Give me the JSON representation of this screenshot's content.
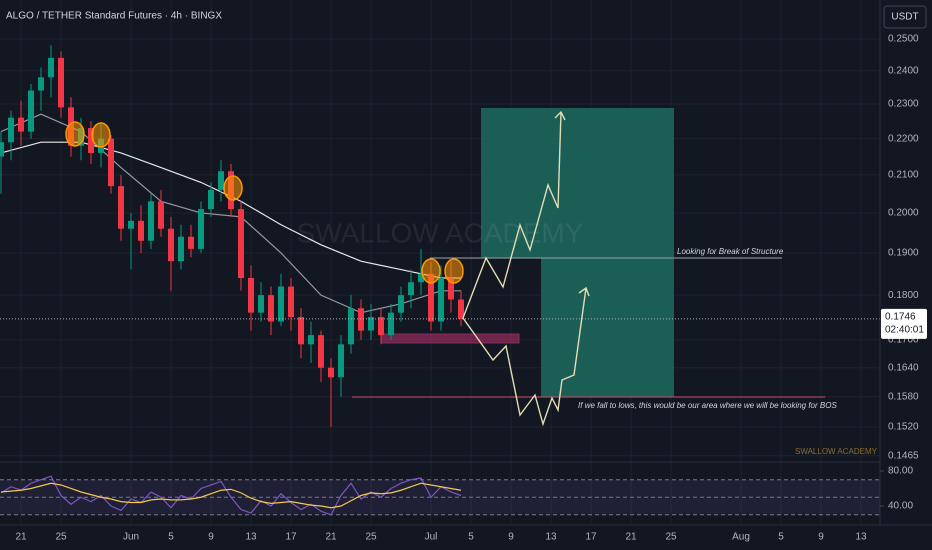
{
  "title": "ALGO / TETHER Standard Futures · 4h · BINGX",
  "currency": "USDT",
  "annotations": {
    "bos_top": "Looking for Break of Structure",
    "bos_bottom": "If we fall to lows, this would be our area where we will be looking for BOS",
    "watermark": "SWALLOW ACADEMY",
    "signature": "SWALLOW ACADEMY"
  },
  "chart_data": [
    {
      "type": "candlestick",
      "log_scale": true,
      "up_color": "#089981",
      "down_color": "#f23645",
      "x": [
        -2,
        -1,
        0,
        1,
        2,
        3,
        4,
        5,
        6,
        7,
        8,
        9,
        10,
        11,
        12,
        13,
        14,
        15,
        16,
        17,
        18,
        19,
        20,
        21,
        22,
        23,
        24,
        25,
        26,
        27,
        28,
        29,
        30,
        31,
        32,
        33,
        34,
        35,
        36,
        37,
        38,
        39,
        40,
        41,
        42,
        43,
        44
      ],
      "open": [
        0.215,
        0.219,
        0.226,
        0.222,
        0.234,
        0.238,
        0.244,
        0.229,
        0.218,
        0.223,
        0.216,
        0.22,
        0.207,
        0.196,
        0.198,
        0.193,
        0.203,
        0.196,
        0.188,
        0.194,
        0.191,
        0.201,
        0.206,
        0.211,
        0.201,
        0.184,
        0.176,
        0.18,
        0.174,
        0.182,
        0.175,
        0.169,
        0.171,
        0.164,
        0.162,
        0.169,
        0.177,
        0.172,
        0.175,
        0.171,
        0.176,
        0.18,
        0.183,
        0.185,
        0.174,
        0.184,
        0.179
      ],
      "high": [
        0.222,
        0.228,
        0.231,
        0.236,
        0.241,
        0.248,
        0.246,
        0.232,
        0.226,
        0.225,
        0.224,
        0.221,
        0.21,
        0.2,
        0.202,
        0.205,
        0.206,
        0.199,
        0.197,
        0.197,
        0.203,
        0.208,
        0.214,
        0.213,
        0.203,
        0.187,
        0.183,
        0.182,
        0.185,
        0.184,
        0.177,
        0.174,
        0.172,
        0.166,
        0.171,
        0.18,
        0.179,
        0.178,
        0.177,
        0.178,
        0.182,
        0.186,
        0.191,
        0.188,
        0.187,
        0.188,
        0.181
      ],
      "low": [
        0.205,
        0.214,
        0.218,
        0.22,
        0.228,
        0.232,
        0.226,
        0.215,
        0.214,
        0.213,
        0.212,
        0.205,
        0.193,
        0.186,
        0.19,
        0.191,
        0.194,
        0.181,
        0.186,
        0.189,
        0.19,
        0.199,
        0.203,
        0.199,
        0.181,
        0.172,
        0.174,
        0.171,
        0.173,
        0.172,
        0.166,
        0.165,
        0.161,
        0.152,
        0.158,
        0.167,
        0.17,
        0.17,
        0.169,
        0.17,
        0.174,
        0.177,
        0.18,
        0.172,
        0.172,
        0.176,
        0.173
      ],
      "close": [
        0.219,
        0.226,
        0.222,
        0.234,
        0.238,
        0.244,
        0.229,
        0.218,
        0.223,
        0.216,
        0.22,
        0.207,
        0.196,
        0.198,
        0.193,
        0.203,
        0.196,
        0.188,
        0.194,
        0.191,
        0.201,
        0.206,
        0.211,
        0.201,
        0.184,
        0.176,
        0.18,
        0.174,
        0.182,
        0.175,
        0.169,
        0.171,
        0.164,
        0.162,
        0.169,
        0.177,
        0.172,
        0.175,
        0.171,
        0.176,
        0.18,
        0.183,
        0.185,
        0.174,
        0.184,
        0.179,
        0.1746
      ],
      "overlays": [
        {
          "color": "#e8e8e8",
          "x": [
            -2,
            2,
            6,
            10,
            14,
            18,
            22,
            26,
            30,
            34,
            38,
            42,
            44
          ],
          "values": [
            0.216,
            0.219,
            0.219,
            0.216,
            0.212,
            0.208,
            0.203,
            0.197,
            0.192,
            0.188,
            0.186,
            0.184,
            0.184
          ]
        },
        {
          "color": "#9598a1",
          "x": [
            -2,
            2,
            6,
            10,
            14,
            18,
            22,
            26,
            30,
            34,
            38,
            42,
            44
          ],
          "values": [
            0.222,
            0.227,
            0.222,
            0.212,
            0.203,
            0.2,
            0.199,
            0.19,
            0.18,
            0.176,
            0.178,
            0.181,
            0.181
          ]
        }
      ],
      "last_price": {
        "value": 0.1746,
        "label": "0.1746",
        "countdown": "02:40:01"
      },
      "xlim": [
        -2.1,
        85.9
      ],
      "ylim": [
        0.1457,
        0.2628
      ],
      "yticks": [
        {
          "value": 0.25,
          "label": "0.2500"
        },
        {
          "value": 0.24,
          "label": "0.2400"
        },
        {
          "value": 0.23,
          "label": "0.2300"
        },
        {
          "value": 0.22,
          "label": "0.2200"
        },
        {
          "value": 0.21,
          "label": "0.2100"
        },
        {
          "value": 0.2,
          "label": "0.2000"
        },
        {
          "value": 0.19,
          "label": "0.1900"
        },
        {
          "value": 0.18,
          "label": "0.1800"
        },
        {
          "value": 0.17,
          "label": "0.1700"
        },
        {
          "value": 0.164,
          "label": "0.1640"
        },
        {
          "value": 0.158,
          "label": "0.1580"
        },
        {
          "value": 0.152,
          "label": "0.1520"
        },
        {
          "value": 0.1465,
          "label": "0.1465"
        }
      ],
      "xticks": [
        {
          "value": 0,
          "label": "21"
        },
        {
          "value": 4,
          "label": "25"
        },
        {
          "value": 11,
          "label": "Jun"
        },
        {
          "value": 15,
          "label": "5"
        },
        {
          "value": 19,
          "label": "9"
        },
        {
          "value": 23,
          "label": "13"
        },
        {
          "value": 27,
          "label": "17"
        },
        {
          "value": 31,
          "label": "21"
        },
        {
          "value": 35,
          "label": "25"
        },
        {
          "value": 41,
          "label": "Jul"
        },
        {
          "value": 45,
          "label": "5"
        },
        {
          "value": 49,
          "label": "9"
        },
        {
          "value": 53,
          "label": "13"
        },
        {
          "value": 57,
          "label": "17"
        },
        {
          "value": 61,
          "label": "21"
        },
        {
          "value": 65,
          "label": "25"
        },
        {
          "value": 72,
          "label": "Aug"
        },
        {
          "value": 76,
          "label": "5"
        },
        {
          "value": 80,
          "label": "9"
        },
        {
          "value": 84,
          "label": "13"
        }
      ],
      "grid": true
    },
    {
      "type": "line",
      "x": [
        -2,
        -1,
        0,
        1,
        2,
        3,
        4,
        5,
        6,
        7,
        8,
        9,
        10,
        11,
        12,
        13,
        14,
        15,
        16,
        17,
        18,
        19,
        20,
        21,
        22,
        23,
        24,
        25,
        26,
        27,
        28,
        29,
        30,
        31,
        32,
        33,
        34,
        35,
        36,
        37,
        38,
        39,
        40,
        41,
        42,
        43,
        44
      ],
      "lines": [
        {
          "color": "#7e57c2",
          "values": [
            55,
            62,
            58,
            66,
            70,
            74,
            52,
            42,
            50,
            45,
            52,
            40,
            35,
            48,
            44,
            56,
            50,
            38,
            52,
            48,
            60,
            64,
            68,
            50,
            36,
            32,
            46,
            40,
            54,
            44,
            36,
            42,
            34,
            30,
            52,
            66,
            48,
            56,
            50,
            60,
            66,
            70,
            72,
            50,
            62,
            56,
            52
          ]
        },
        {
          "color": "#f2c94c",
          "values": [
            56,
            57,
            58,
            60,
            63,
            66,
            64,
            60,
            56,
            53,
            50,
            48,
            45,
            44,
            44,
            47,
            48,
            47,
            47,
            48,
            50,
            54,
            58,
            59,
            55,
            49,
            45,
            43,
            44,
            45,
            43,
            41,
            40,
            38,
            40,
            46,
            52,
            55,
            54,
            55,
            58,
            62,
            66,
            64,
            62,
            60,
            58
          ]
        }
      ],
      "levels": [
        70,
        50,
        30
      ],
      "xlim": [
        -2.1,
        85.9
      ],
      "ylim": [
        20.6,
        89.1
      ],
      "yticks": [
        {
          "value": 80,
          "label": "80.00"
        },
        {
          "value": 40,
          "label": "40.00"
        }
      ]
    }
  ]
}
